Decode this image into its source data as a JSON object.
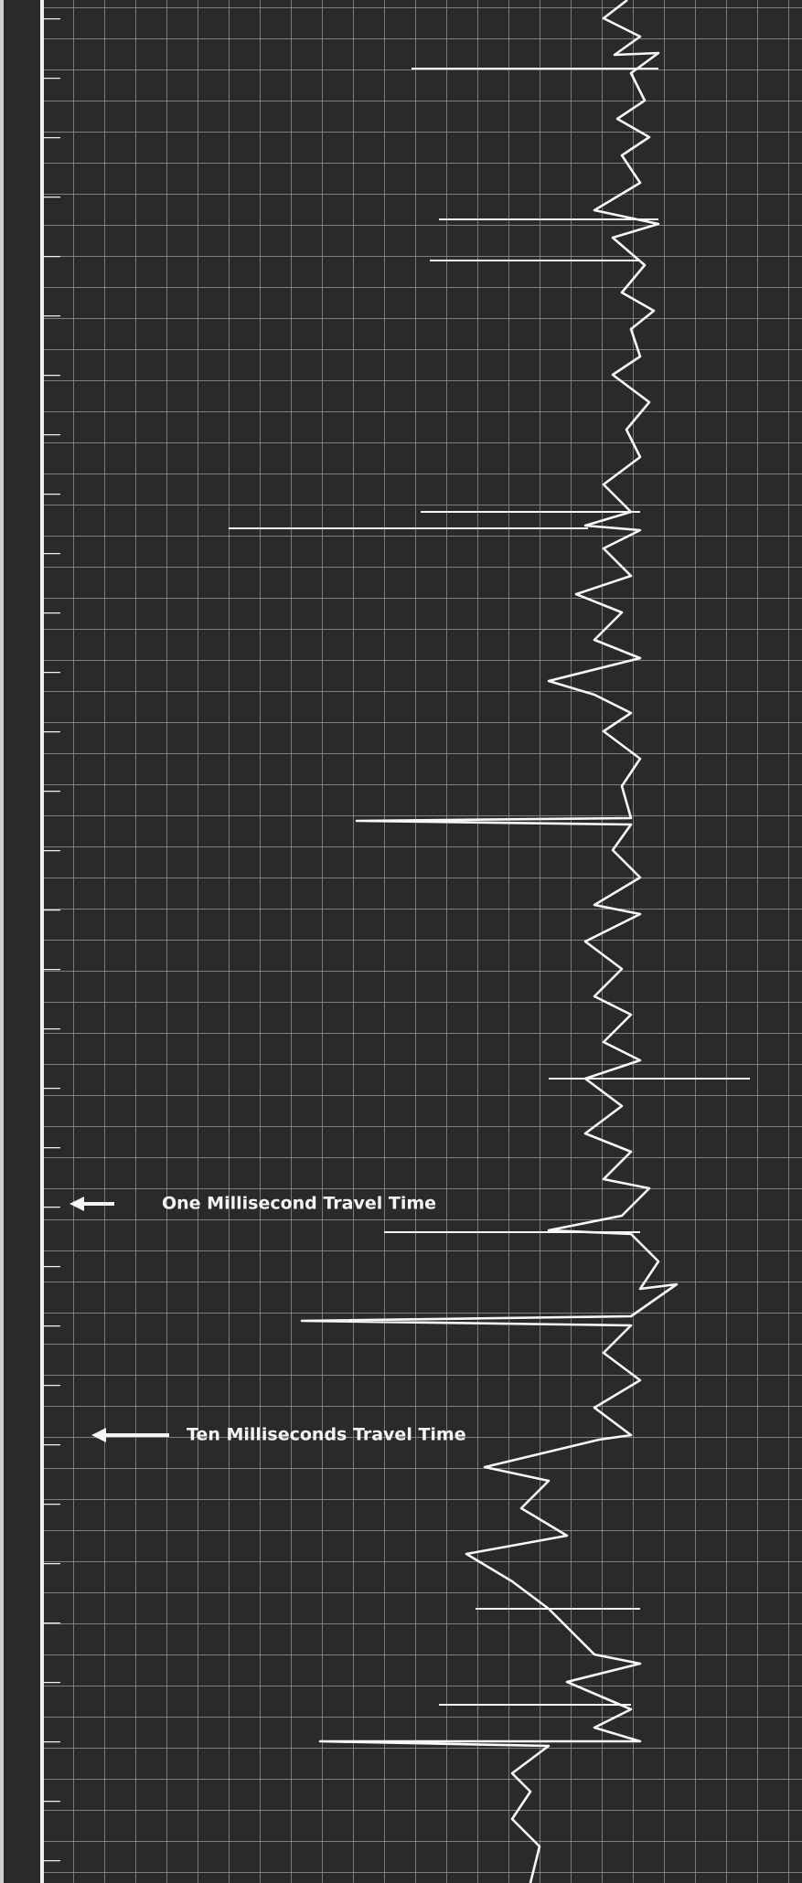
{
  "annotations": [
    {
      "label": "One Millisecond Travel Time"
    },
    {
      "label": "Ten Milliseconds Travel Time"
    }
  ]
}
